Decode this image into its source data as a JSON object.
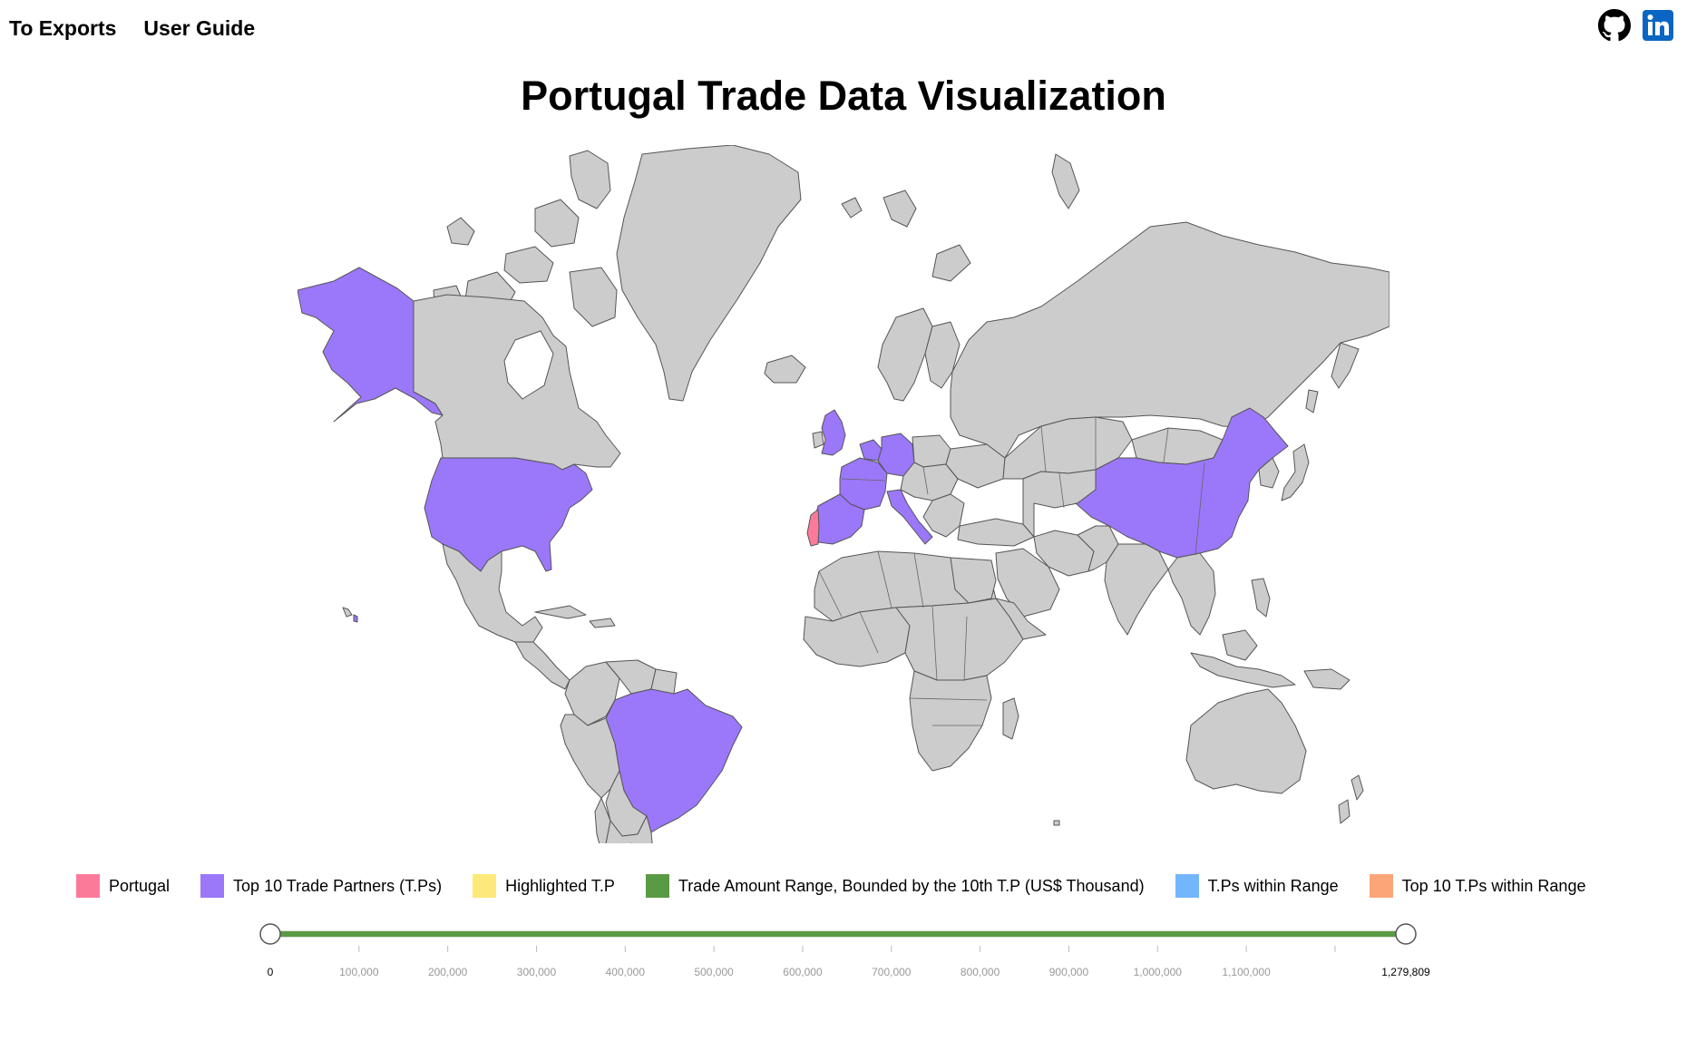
{
  "nav": {
    "exports_link": "To Exports",
    "guide_link": "User Guide"
  },
  "social": {
    "github_icon": "github-icon",
    "linkedin_icon": "linkedin-icon",
    "linkedin_color": "#0a66c2"
  },
  "title": "Portugal Trade Data Visualization",
  "map": {
    "home_country": "Portugal",
    "home_color": "#fb7a99",
    "partner_color": "#9b78fa",
    "other_color": "#cccccc",
    "highlighted_partners": [
      "United States",
      "Alaska (United States)",
      "Brazil",
      "United Kingdom",
      "France",
      "Germany",
      "Spain",
      "Italy",
      "Netherlands",
      "Belgium",
      "China"
    ]
  },
  "legend": [
    {
      "label": "Portugal",
      "color": "#fb7a99"
    },
    {
      "label": "Top 10 Trade Partners (T.Ps)",
      "color": "#9b78fa"
    },
    {
      "label": "Highlighted T.P",
      "color": "#fde97a"
    },
    {
      "label": "Trade Amount Range, Bounded by the 10th T.P (US$ Thousand)",
      "color": "#5a9a45"
    },
    {
      "label": "T.Ps within Range",
      "color": "#74b6fb"
    },
    {
      "label": "Top 10 T.Ps within Range",
      "color": "#fba678"
    }
  ],
  "slider": {
    "min": 0,
    "max": 1279809,
    "low_value": 0,
    "high_value": 1279809,
    "min_label": "0",
    "max_label": "1,279,809",
    "track_color": "#5a9a45",
    "ticks": [
      {
        "value": 100000,
        "label": "100,000"
      },
      {
        "value": 200000,
        "label": "200,000"
      },
      {
        "value": 300000,
        "label": "300,000"
      },
      {
        "value": 400000,
        "label": "400,000"
      },
      {
        "value": 500000,
        "label": "500,000"
      },
      {
        "value": 600000,
        "label": "600,000"
      },
      {
        "value": 700000,
        "label": "700,000"
      },
      {
        "value": 800000,
        "label": "800,000"
      },
      {
        "value": 900000,
        "label": "900,000"
      },
      {
        "value": 1000000,
        "label": "1,000,000"
      },
      {
        "value": 1100000,
        "label": "1,100,000"
      }
    ]
  }
}
